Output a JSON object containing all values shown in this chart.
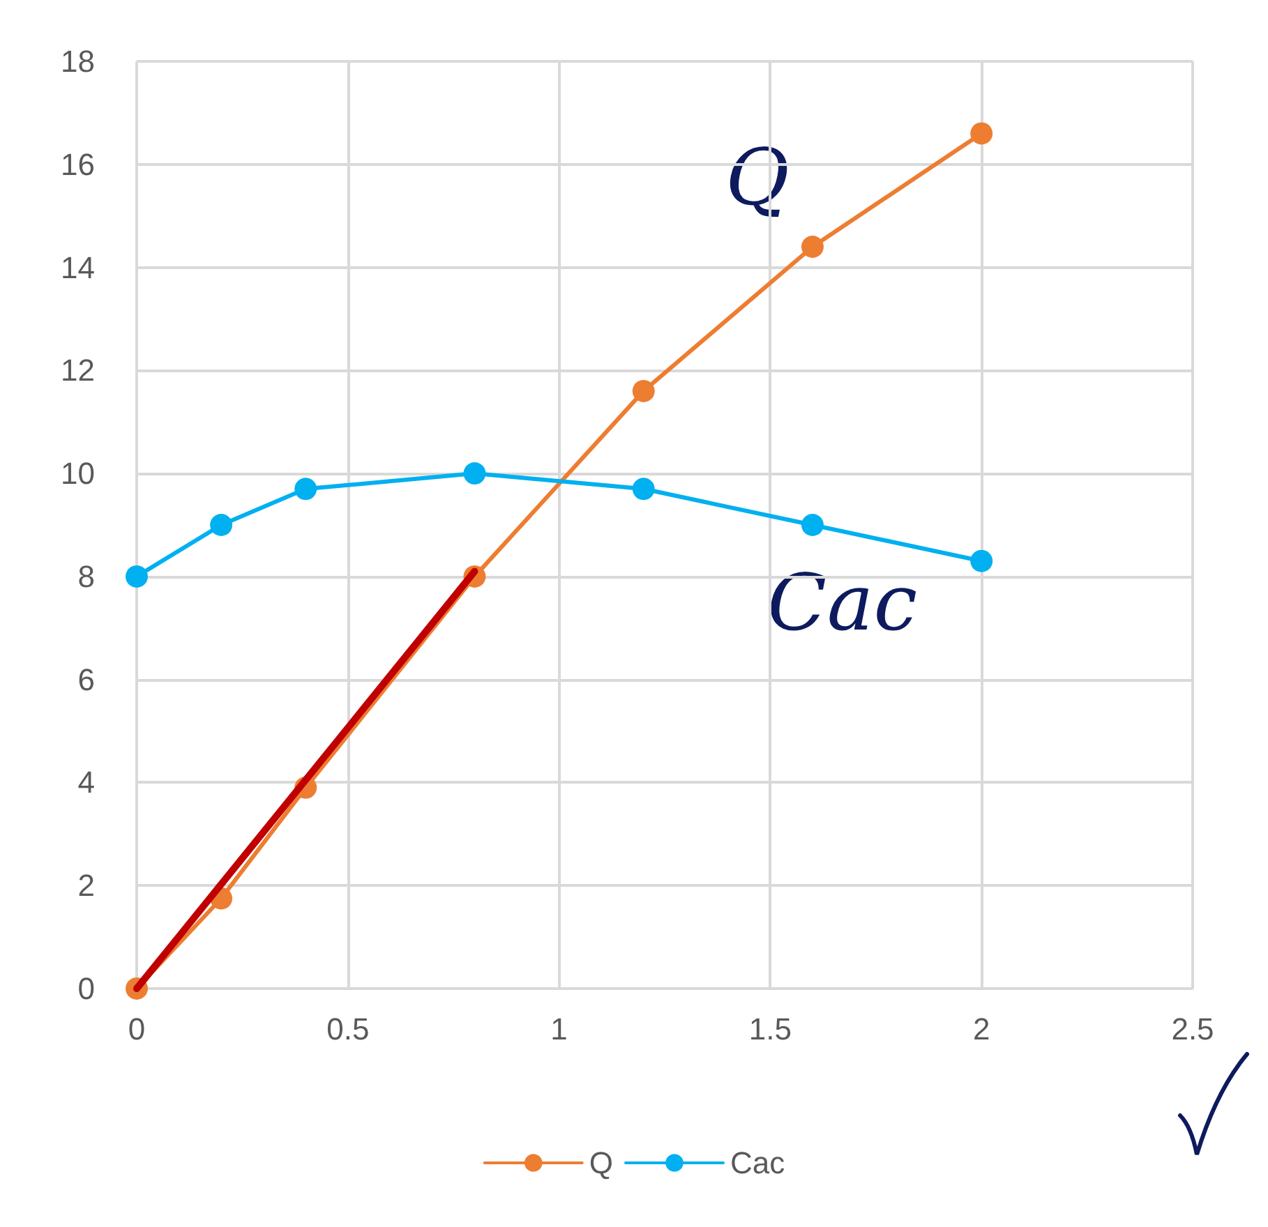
{
  "chart_data": {
    "type": "line",
    "x": [
      0,
      0.2,
      0.4,
      0.8,
      1.2,
      1.6,
      2
    ],
    "series": [
      {
        "name": "Q",
        "color": "#ed7d31",
        "values": [
          0,
          1.75,
          3.9,
          8,
          11.6,
          14.4,
          16.6
        ]
      },
      {
        "name": "Cac",
        "color": "#00b0f0",
        "values": [
          8,
          9,
          9.7,
          10,
          9.7,
          9,
          8.3
        ]
      },
      {
        "color": "#c00000",
        "x": [
          0,
          0.8
        ],
        "values": [
          0,
          8.1
        ],
        "marker": "none"
      }
    ],
    "xlim": [
      0,
      2.5
    ],
    "xticks": [
      0,
      0.5,
      1,
      1.5,
      2,
      2.5
    ],
    "ylim": [
      0,
      18
    ],
    "yticks": [
      0,
      2,
      4,
      6,
      8,
      10,
      12,
      14,
      16,
      18
    ],
    "grid": true,
    "legend": "bottom",
    "marker": "circle",
    "line_style": "solid",
    "annotations": [
      "Q",
      "Cac"
    ]
  }
}
